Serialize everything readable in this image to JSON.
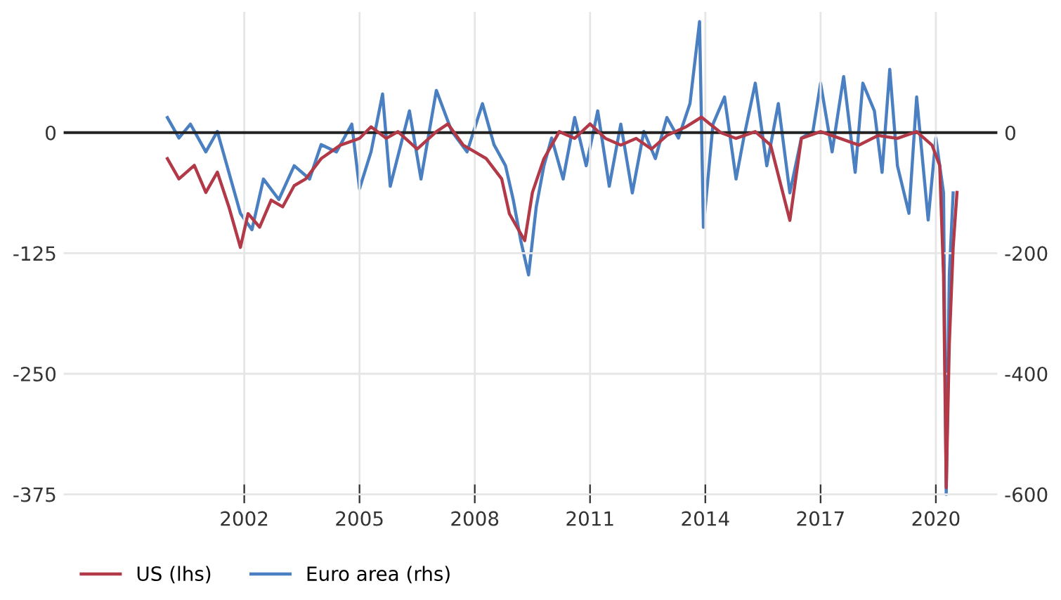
{
  "chart_data": {
    "type": "line",
    "xlim": [
      1997.3,
      2021.6
    ],
    "ylim": [
      -385,
      125
    ],
    "y2lim": [
      -616,
      200
    ],
    "xticks": [
      2002,
      2005,
      2008,
      2011,
      2014,
      2017,
      2020
    ],
    "yticks": [
      0,
      -125,
      -250,
      -375
    ],
    "y2ticks": [
      0,
      -200,
      -400,
      -600
    ],
    "grid": true,
    "legend": "bottom left",
    "line_style": "solid",
    "marker": "none",
    "ref_lines": [
      {
        "axis": "y",
        "value": 0,
        "color": "#222222"
      }
    ],
    "series": [
      {
        "name": "US (lhs)",
        "color": "#b23a48",
        "x": [
          2000.0,
          2000.3,
          2000.7,
          2001.0,
          2001.3,
          2001.6,
          2001.9,
          2002.1,
          2002.4,
          2002.7,
          2003.0,
          2003.3,
          2003.6,
          2004.0,
          2004.5,
          2005.0,
          2005.3,
          2005.7,
          2006.0,
          2006.5,
          2007.0,
          2007.3,
          2007.7,
          2008.0,
          2008.3,
          2008.7,
          2008.9,
          2009.1,
          2009.3,
          2009.5,
          2009.8,
          2010.2,
          2010.6,
          2011.0,
          2011.4,
          2011.8,
          2012.2,
          2012.6,
          2013.0,
          2013.5,
          2013.9,
          2014.4,
          2014.8,
          2015.3,
          2015.7,
          2016.2,
          2016.5,
          2017.0,
          2017.5,
          2018.0,
          2018.5,
          2019.0,
          2019.5,
          2019.9,
          2020.1,
          2020.2,
          2020.27,
          2020.35,
          2020.45,
          2020.55
        ],
        "values": [
          -27,
          -48,
          -34,
          -62,
          -41,
          -77,
          -119,
          -84,
          -98,
          -70,
          -77,
          -55,
          -48,
          -27,
          -13,
          -6,
          6,
          -6,
          1,
          -17,
          1,
          9,
          -13,
          -20,
          -27,
          -48,
          -84,
          -98,
          -112,
          -62,
          -27,
          1,
          -6,
          9,
          -6,
          -13,
          -6,
          -17,
          -3,
          6,
          16,
          0,
          -6,
          1,
          -13,
          -91,
          -6,
          1,
          -6,
          -13,
          -3,
          -6,
          1,
          -13,
          -34,
          -148,
          -368,
          -219,
          -119,
          -62
        ]
      },
      {
        "name": "Euro area (rhs)",
        "color": "#4a7fc1",
        "axis": "y2",
        "x": [
          2000.0,
          2000.3,
          2000.6,
          2001.0,
          2001.3,
          2001.6,
          2001.9,
          2002.2,
          2002.5,
          2002.9,
          2003.3,
          2003.7,
          2004.0,
          2004.4,
          2004.8,
          2005.0,
          2005.3,
          2005.6,
          2005.8,
          2006.3,
          2006.6,
          2007.0,
          2007.4,
          2007.8,
          2008.2,
          2008.5,
          2008.8,
          2009.0,
          2009.2,
          2009.4,
          2009.6,
          2009.8,
          2010.0,
          2010.3,
          2010.6,
          2010.9,
          2011.2,
          2011.5,
          2011.8,
          2012.1,
          2012.4,
          2012.7,
          2013.0,
          2013.3,
          2013.6,
          2013.85,
          2013.95,
          2014.2,
          2014.5,
          2014.8,
          2015.0,
          2015.3,
          2015.6,
          2015.9,
          2016.2,
          2016.5,
          2016.8,
          2017.0,
          2017.3,
          2017.6,
          2017.9,
          2018.1,
          2018.4,
          2018.6,
          2018.8,
          2019.0,
          2019.3,
          2019.5,
          2019.8,
          2020.0,
          2020.2,
          2020.27,
          2020.35,
          2020.45
        ],
        "values": [
          25,
          -9,
          14,
          -32,
          2,
          -66,
          -134,
          -161,
          -77,
          -111,
          -55,
          -77,
          -20,
          -32,
          14,
          -93,
          -32,
          64,
          -89,
          36,
          -77,
          70,
          2,
          -32,
          48,
          -20,
          -55,
          -111,
          -180,
          -236,
          -123,
          -55,
          -9,
          -77,
          25,
          -55,
          36,
          -89,
          14,
          -100,
          2,
          -43,
          25,
          -9,
          48,
          184,
          -157,
          14,
          59,
          -77,
          -9,
          82,
          -55,
          48,
          -100,
          -9,
          2,
          82,
          -32,
          93,
          -66,
          82,
          36,
          -66,
          105,
          -55,
          -134,
          59,
          -145,
          -9,
          -100,
          -600,
          -236,
          -100
        ]
      }
    ]
  }
}
